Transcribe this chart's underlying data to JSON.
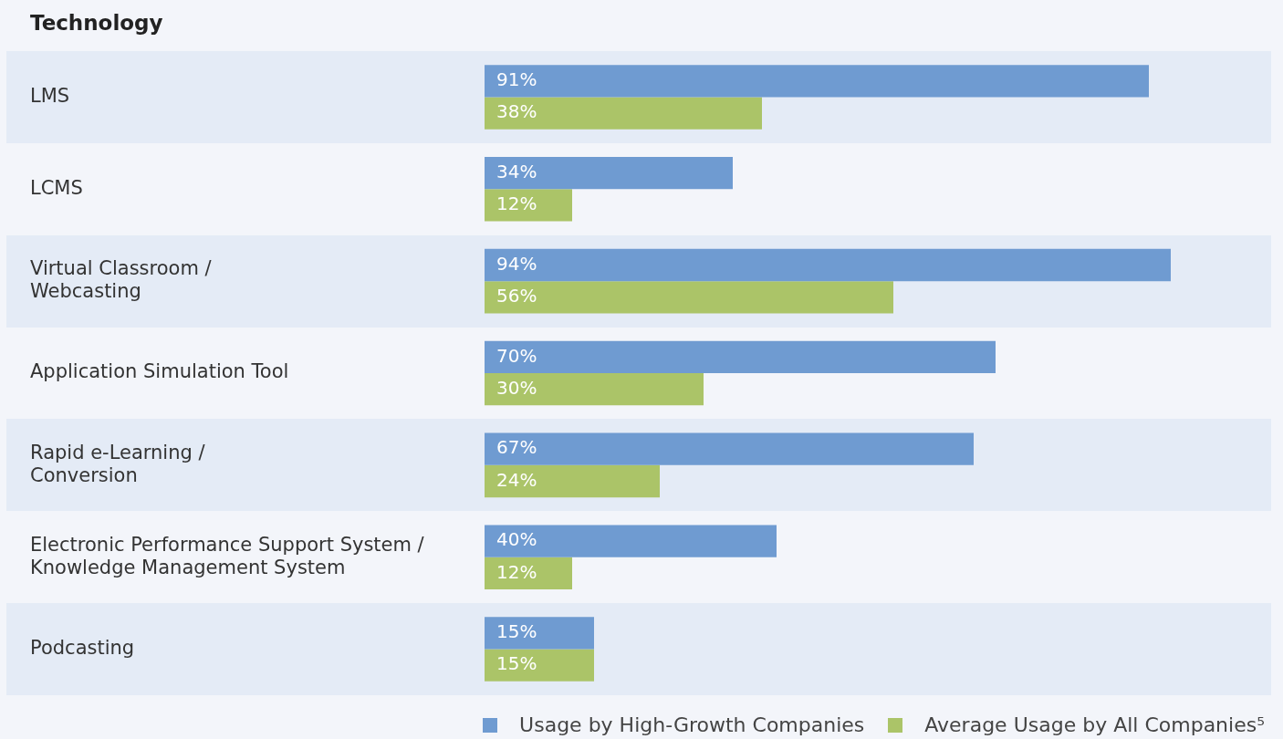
{
  "chart_data": {
    "type": "bar",
    "orientation": "horizontal",
    "title": "Technology",
    "categories": [
      "LMS",
      "LCMS",
      "Virtual Classroom /\nWebcasting",
      "Application Simulation Tool",
      "Rapid e-Learning /\nConversion",
      "Electronic Performance Support System /\nKnowledge Management System",
      "Podcasting"
    ],
    "series": [
      {
        "name": "Usage by High-Growth Companies",
        "color": "#6f9bd1",
        "values": [
          91,
          34,
          94,
          70,
          67,
          40,
          15
        ],
        "value_labels": [
          "91%",
          "34%",
          "94%",
          "70%",
          "67%",
          "40%",
          "15%"
        ]
      },
      {
        "name": "Average Usage by All Companies⁵",
        "color": "#abc468",
        "values": [
          38,
          12,
          56,
          30,
          24,
          12,
          15
        ],
        "value_labels": [
          "38%",
          "12%",
          "56%",
          "30%",
          "24%",
          "12%",
          "15%"
        ]
      }
    ],
    "legend": "bottom right",
    "tick_labels": "y"
  }
}
